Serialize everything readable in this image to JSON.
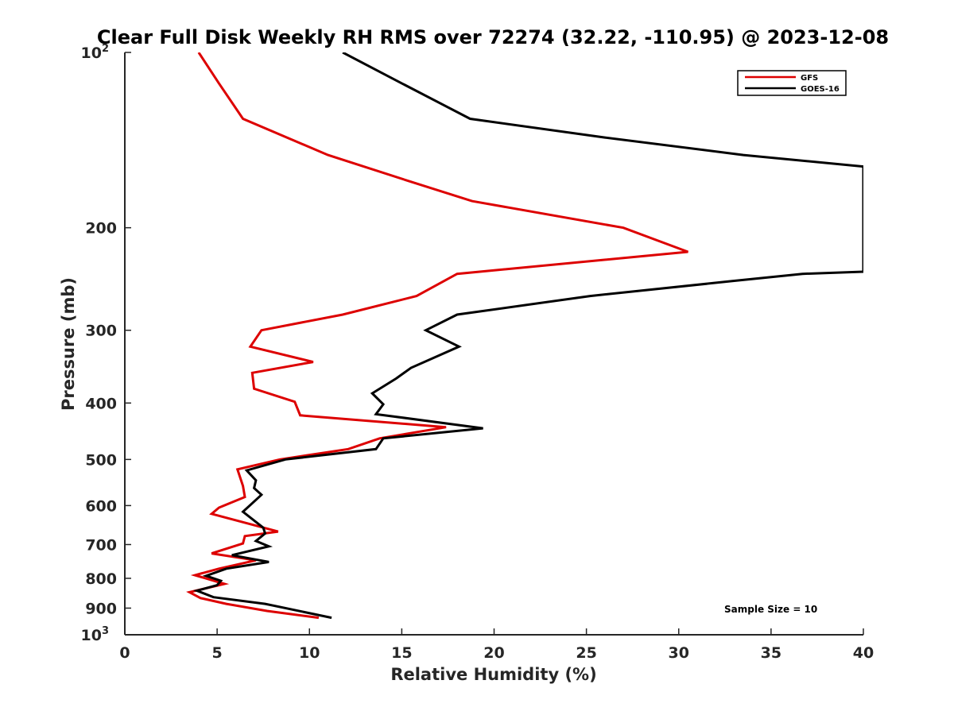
{
  "chart_data": {
    "type": "line",
    "title": "Clear Full Disk Weekly RH RMS over 72274 (32.22, -110.95) @ 2023-12-08",
    "xlabel": "Relative Humidity (%)",
    "ylabel": "Pressure (mb)",
    "xlim": [
      0,
      40
    ],
    "ylim": [
      100,
      1000
    ],
    "y_scale": "log",
    "y_reversed": true,
    "grid": false,
    "legend_position": "top-right",
    "x_ticks": [
      "0",
      "5",
      "10",
      "15",
      "20",
      "25",
      "30",
      "35",
      "40"
    ],
    "y_ticks": [
      {
        "value": 100,
        "base": "10",
        "exp": "2"
      },
      {
        "value": 200,
        "label": "200"
      },
      {
        "value": 300,
        "label": "300"
      },
      {
        "value": 400,
        "label": "400"
      },
      {
        "value": 500,
        "label": "500"
      },
      {
        "value": 600,
        "label": "600"
      },
      {
        "value": 700,
        "label": "700"
      },
      {
        "value": 800,
        "label": "800"
      },
      {
        "value": 900,
        "label": "900"
      },
      {
        "value": 1000,
        "base": "10",
        "exp": "3"
      }
    ],
    "annotation": "Sample Size = 10",
    "series": [
      {
        "name": "GFS",
        "color": "#dd0000",
        "points": [
          [
            4.0,
            100
          ],
          [
            5.1,
            113
          ],
          [
            6.4,
            130
          ],
          [
            11.0,
            150
          ],
          [
            15.3,
            166
          ],
          [
            18.8,
            180
          ],
          [
            27.0,
            200
          ],
          [
            30.5,
            220
          ],
          [
            18.0,
            240
          ],
          [
            15.8,
            262
          ],
          [
            11.8,
            282
          ],
          [
            7.4,
            300
          ],
          [
            6.8,
            320
          ],
          [
            10.2,
            340
          ],
          [
            6.9,
            355
          ],
          [
            7.0,
            378
          ],
          [
            9.2,
            398
          ],
          [
            9.5,
            420
          ],
          [
            17.4,
            440
          ],
          [
            13.8,
            460
          ],
          [
            12.1,
            480
          ],
          [
            8.4,
            500
          ],
          [
            6.1,
            520
          ],
          [
            6.4,
            555
          ],
          [
            6.5,
            580
          ],
          [
            5.1,
            605
          ],
          [
            4.7,
            620
          ],
          [
            8.3,
            665
          ],
          [
            6.5,
            677
          ],
          [
            6.4,
            697
          ],
          [
            4.7,
            725
          ],
          [
            7.1,
            745
          ],
          [
            5.1,
            770
          ],
          [
            3.8,
            790
          ],
          [
            5.4,
            818
          ],
          [
            3.5,
            845
          ],
          [
            4.1,
            865
          ],
          [
            5.5,
            885
          ],
          [
            7.7,
            910
          ],
          [
            10.5,
            935
          ]
        ]
      },
      {
        "name": "GOES-16",
        "color": "#000000",
        "points": [
          [
            11.8,
            100
          ],
          [
            15.0,
            113
          ],
          [
            18.7,
            130
          ],
          [
            26.0,
            140
          ],
          [
            33.5,
            150
          ],
          [
            40.0,
            157
          ],
          [
            40.0,
            238
          ],
          [
            36.7,
            240
          ],
          [
            32.9,
            247
          ],
          [
            25.2,
            262
          ],
          [
            18.0,
            282
          ],
          [
            16.3,
            300
          ],
          [
            18.1,
            320
          ],
          [
            15.5,
            348
          ],
          [
            14.7,
            363
          ],
          [
            13.4,
            385
          ],
          [
            14.0,
            402
          ],
          [
            13.6,
            418
          ],
          [
            19.4,
            442
          ],
          [
            14.0,
            460
          ],
          [
            13.6,
            480
          ],
          [
            8.7,
            500
          ],
          [
            6.6,
            522
          ],
          [
            7.1,
            543
          ],
          [
            7.0,
            560
          ],
          [
            7.4,
            575
          ],
          [
            6.4,
            615
          ],
          [
            7.5,
            655
          ],
          [
            7.6,
            670
          ],
          [
            7.1,
            690
          ],
          [
            7.8,
            705
          ],
          [
            5.8,
            730
          ],
          [
            7.8,
            750
          ],
          [
            5.5,
            770
          ],
          [
            4.4,
            792
          ],
          [
            5.2,
            808
          ],
          [
            5.0,
            822
          ],
          [
            3.9,
            840
          ],
          [
            4.8,
            862
          ],
          [
            7.6,
            885
          ],
          [
            11.2,
            935
          ]
        ]
      }
    ]
  }
}
